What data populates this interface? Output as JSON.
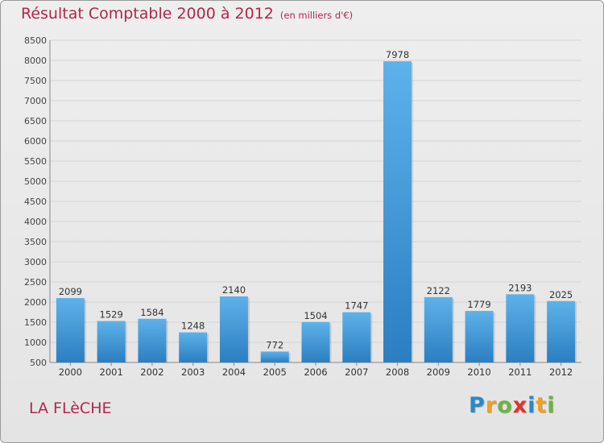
{
  "title": "Résultat Comptable 2000 à 2012",
  "subtitle": "(en milliers d'€)",
  "city": "LA FLèCHE",
  "brand": {
    "letters": [
      "P",
      "r",
      "o",
      "x",
      "i",
      "t",
      "i"
    ],
    "colors": [
      "#2a89c8",
      "#f0a020",
      "#6cb43f",
      "#e4312b",
      "#2a89c8",
      "#f0a020",
      "#6cb43f"
    ]
  },
  "colors": {
    "title": "#b3264d",
    "bar_light": "#5eb2ea",
    "bar_dark": "#2b7ec0",
    "grid": "#d4d4d4"
  },
  "chart_data": {
    "type": "bar",
    "title": "Résultat Comptable 2000 à 2012",
    "xlabel": "",
    "ylabel": "",
    "categories": [
      "2000",
      "2001",
      "2002",
      "2003",
      "2004",
      "2005",
      "2006",
      "2007",
      "2008",
      "2009",
      "2010",
      "2011",
      "2012"
    ],
    "values": [
      2099,
      1529,
      1584,
      1248,
      2140,
      772,
      1504,
      1747,
      7978,
      2122,
      1779,
      2193,
      2025
    ],
    "ylim": [
      500,
      8500
    ],
    "yticks": [
      500,
      1000,
      1500,
      2000,
      2500,
      3000,
      3500,
      4000,
      4500,
      5000,
      5500,
      6000,
      6500,
      7000,
      7500,
      8000,
      8500
    ],
    "grid": true
  }
}
